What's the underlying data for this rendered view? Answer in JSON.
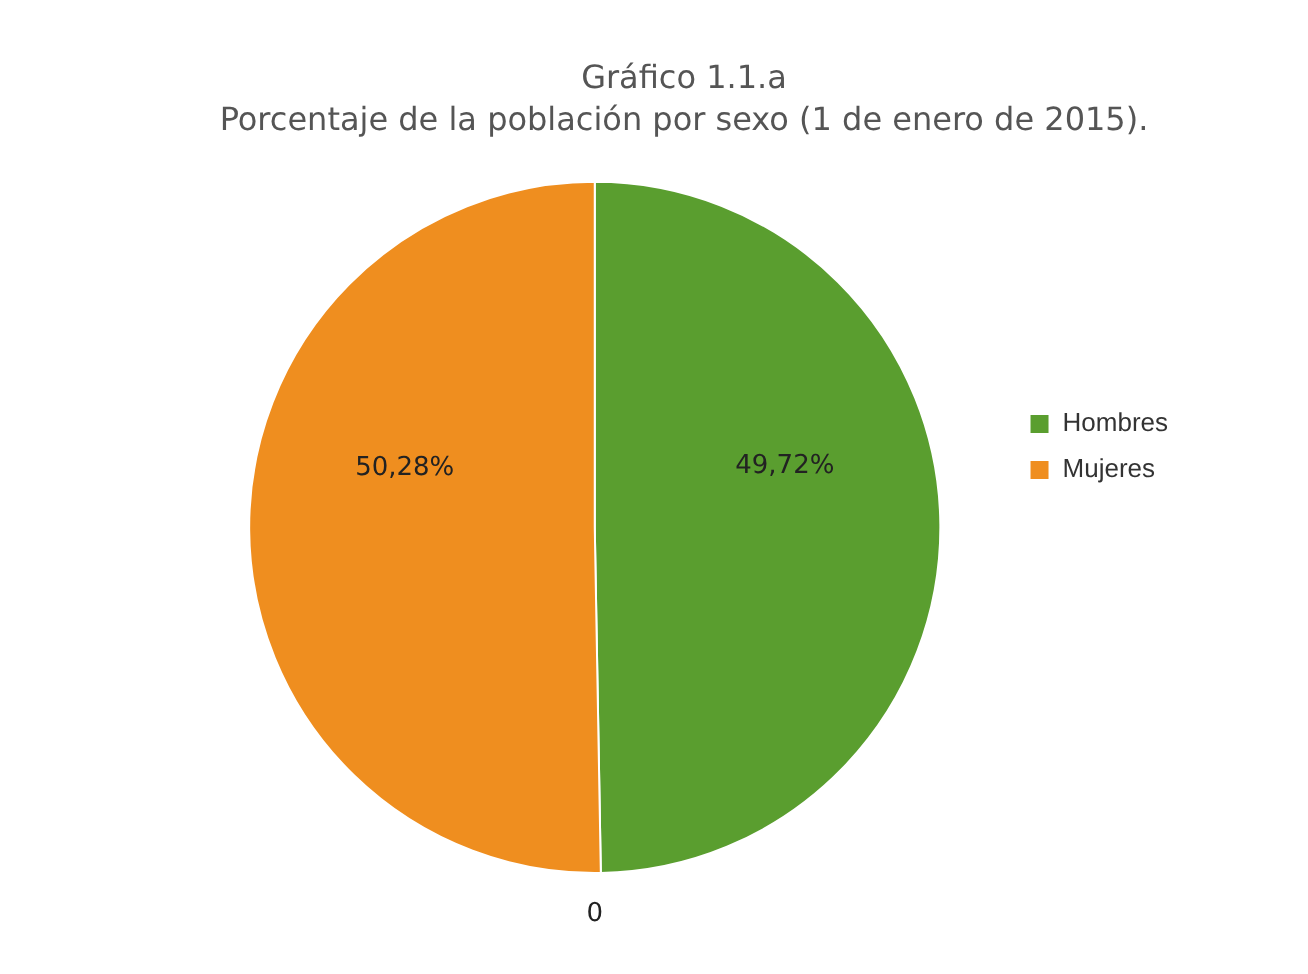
{
  "chart_data": {
    "type": "pie",
    "title": "Gráfico 1.1.a",
    "subtitle": "Porcentaje de la población por sexo (1 de enero de 2015).",
    "categories": [
      "Hombres",
      "Mujeres"
    ],
    "values": [
      49.72,
      50.28
    ],
    "colors": [
      "#5a9e2f",
      "#ef8e1f"
    ],
    "value_labels": [
      "49,72%",
      "50,28%"
    ],
    "legend": "right",
    "annotations": [
      "0"
    ]
  }
}
